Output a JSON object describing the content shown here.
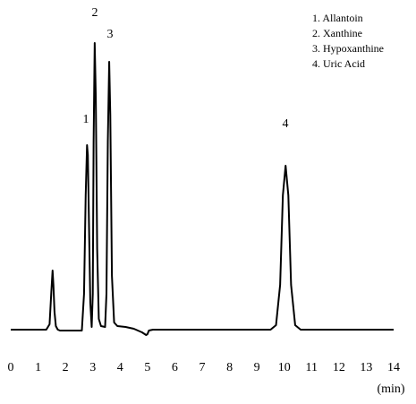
{
  "chart_data": {
    "type": "line",
    "x": [
      0,
      1.3,
      1.42,
      1.48,
      1.53,
      1.56,
      1.6,
      1.65,
      1.72,
      1.8,
      2.6,
      2.68,
      2.74,
      2.79,
      2.82,
      2.86,
      2.91,
      2.96,
      3.0,
      3.03,
      3.07,
      3.11,
      3.16,
      3.22,
      3.3,
      3.45,
      3.5,
      3.55,
      3.6,
      3.64,
      3.7,
      3.78,
      3.9,
      4.2,
      4.5,
      4.8,
      4.95,
      5.0,
      5.05,
      5.2,
      9.5,
      9.7,
      9.85,
      9.95,
      10.05,
      10.15,
      10.25,
      10.4,
      10.6,
      14
    ],
    "values": [
      0,
      0,
      6,
      40,
      66,
      50,
      20,
      4,
      0,
      -1,
      -1,
      40,
      150,
      206,
      195,
      120,
      30,
      3,
      40,
      210,
      320,
      260,
      90,
      12,
      4,
      3,
      40,
      210,
      299,
      240,
      60,
      8,
      4,
      3,
      1,
      -3,
      -6,
      -5,
      -1,
      0,
      0,
      5,
      50,
      150,
      183,
      150,
      50,
      5,
      0,
      0
    ],
    "color": "#000000",
    "xlim": [
      0,
      14
    ],
    "xticks": [
      0,
      1,
      2,
      3,
      4,
      5,
      6,
      7,
      8,
      9,
      10,
      11,
      12,
      13,
      14
    ],
    "xlabel": "(min)",
    "peak_labels": [
      "1",
      "2",
      "3",
      "4"
    ],
    "legend_items": [
      "1. Allantoin",
      "2. Xanthine",
      "3. Hypoxanthine",
      "4. Uric Acid"
    ]
  }
}
